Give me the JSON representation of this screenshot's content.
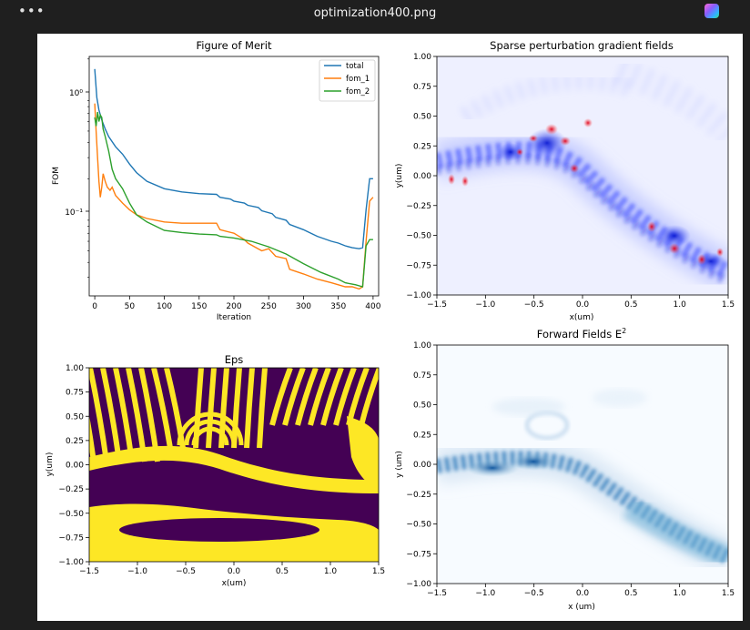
{
  "window": {
    "title": "optimization400.png",
    "more_label": "•••",
    "app_icon": "copilot-icon"
  },
  "chart_data": [
    {
      "type": "line",
      "title": "Figure of Merit",
      "xlabel": "Iteration",
      "ylabel": "FOM",
      "yscale": "log",
      "xlim": [
        -8,
        408
      ],
      "ylim": [
        0.021,
        2.1
      ],
      "xticks": [
        0,
        50,
        100,
        150,
        200,
        250,
        300,
        350,
        400
      ],
      "xtick_labels": [
        "0",
        "50",
        "100",
        "150",
        "200",
        "250",
        "300",
        "350",
        "400"
      ],
      "yticks": [
        1,
        0.1
      ],
      "ytick_labels": [
        "10⁰",
        "10⁻¹"
      ],
      "legend": {
        "position": "top-right",
        "entries": [
          "total",
          "fom_1",
          "fom_2"
        ]
      },
      "series": [
        {
          "name": "total",
          "color": "#1f77b4",
          "x": [
            0,
            3,
            6,
            10,
            15,
            20,
            30,
            40,
            50,
            60,
            75,
            100,
            125,
            150,
            175,
            180,
            195,
            200,
            215,
            220,
            235,
            240,
            255,
            260,
            275,
            280,
            300,
            320,
            340,
            350,
            360,
            370,
            380,
            385,
            390,
            395,
            400
          ],
          "y": [
            1.65,
            0.95,
            0.75,
            0.62,
            0.52,
            0.45,
            0.37,
            0.32,
            0.265,
            0.225,
            0.19,
            0.165,
            0.155,
            0.15,
            0.148,
            0.14,
            0.135,
            0.13,
            0.125,
            0.12,
            0.115,
            0.108,
            0.102,
            0.095,
            0.09,
            0.083,
            0.075,
            0.066,
            0.06,
            0.058,
            0.055,
            0.053,
            0.052,
            0.053,
            0.11,
            0.2,
            0.2
          ]
        },
        {
          "name": "fom_1",
          "color": "#ff7f0e",
          "x": [
            0,
            2,
            4,
            6,
            8,
            10,
            12,
            15,
            18,
            22,
            25,
            30,
            40,
            50,
            60,
            75,
            100,
            125,
            150,
            175,
            180,
            200,
            215,
            220,
            240,
            250,
            260,
            275,
            280,
            300,
            320,
            340,
            350,
            360,
            370,
            380,
            385,
            390,
            395,
            400
          ],
          "y": [
            0.85,
            0.5,
            0.3,
            0.19,
            0.14,
            0.17,
            0.22,
            0.19,
            0.17,
            0.16,
            0.17,
            0.145,
            0.125,
            0.11,
            0.1,
            0.093,
            0.087,
            0.085,
            0.085,
            0.085,
            0.075,
            0.07,
            0.062,
            0.058,
            0.05,
            0.052,
            0.045,
            0.043,
            0.035,
            0.032,
            0.029,
            0.027,
            0.026,
            0.025,
            0.025,
            0.024,
            0.025,
            0.06,
            0.13,
            0.14
          ]
        },
        {
          "name": "fom_2",
          "color": "#2ca02c",
          "x": [
            0,
            2,
            4,
            6,
            8,
            10,
            12,
            15,
            20,
            25,
            30,
            40,
            50,
            60,
            75,
            100,
            125,
            150,
            175,
            180,
            200,
            225,
            250,
            275,
            300,
            325,
            350,
            360,
            375,
            385,
            390,
            395,
            400
          ],
          "y": [
            0.65,
            0.55,
            0.72,
            0.6,
            0.68,
            0.65,
            0.52,
            0.45,
            0.34,
            0.24,
            0.2,
            0.165,
            0.125,
            0.1,
            0.087,
            0.074,
            0.071,
            0.069,
            0.068,
            0.066,
            0.064,
            0.06,
            0.054,
            0.047,
            0.039,
            0.033,
            0.029,
            0.027,
            0.026,
            0.025,
            0.055,
            0.062,
            0.062
          ]
        }
      ]
    },
    {
      "type": "heatmap",
      "title": "Sparse perturbation gradient fields",
      "xlabel": "x(um)",
      "ylabel": "y(um)",
      "xlim": [
        -1.5,
        1.5
      ],
      "ylim": [
        -1.0,
        1.0
      ],
      "xtick_labels": [
        "−1.5",
        "−1.0",
        "−0.5",
        "0.0",
        "0.5",
        "1.0",
        "1.5"
      ],
      "ytick_labels": [
        "1.00",
        "0.75",
        "0.50",
        "0.25",
        "0.00",
        "−0.25",
        "−0.50",
        "−0.75",
        "−1.00"
      ],
      "colormap": "bwr"
    },
    {
      "type": "heatmap",
      "title": "Eps",
      "xlabel": "x(um)",
      "ylabel": "y(um)",
      "xlim": [
        -1.5,
        1.5
      ],
      "ylim": [
        -1.0,
        1.0
      ],
      "xtick_labels": [
        "−1.5",
        "−1.0",
        "−0.5",
        "0.0",
        "0.5",
        "1.0",
        "1.5"
      ],
      "ytick_labels": [
        "1.00",
        "0.75",
        "0.50",
        "0.25",
        "0.00",
        "−0.25",
        "−0.50",
        "−0.75",
        "−1.00"
      ],
      "colormap": "viridis",
      "colors": {
        "low": "#440154",
        "high": "#fde725"
      }
    },
    {
      "type": "heatmap",
      "title": "Forward Fields E²",
      "title_base": "Forward Fields E",
      "title_sup": "2",
      "xlabel": "x (um)",
      "ylabel": "y (um)",
      "xlim": [
        -1.5,
        1.5
      ],
      "ylim": [
        -1.0,
        1.0
      ],
      "xtick_labels": [
        "−1.5",
        "−1.0",
        "−0.5",
        "0.0",
        "0.5",
        "1.0",
        "1.5"
      ],
      "ytick_labels": [
        "1.00",
        "0.75",
        "0.50",
        "0.25",
        "0.00",
        "−0.25",
        "−0.50",
        "−0.75",
        "−1.00"
      ],
      "colormap": "Blues"
    }
  ]
}
